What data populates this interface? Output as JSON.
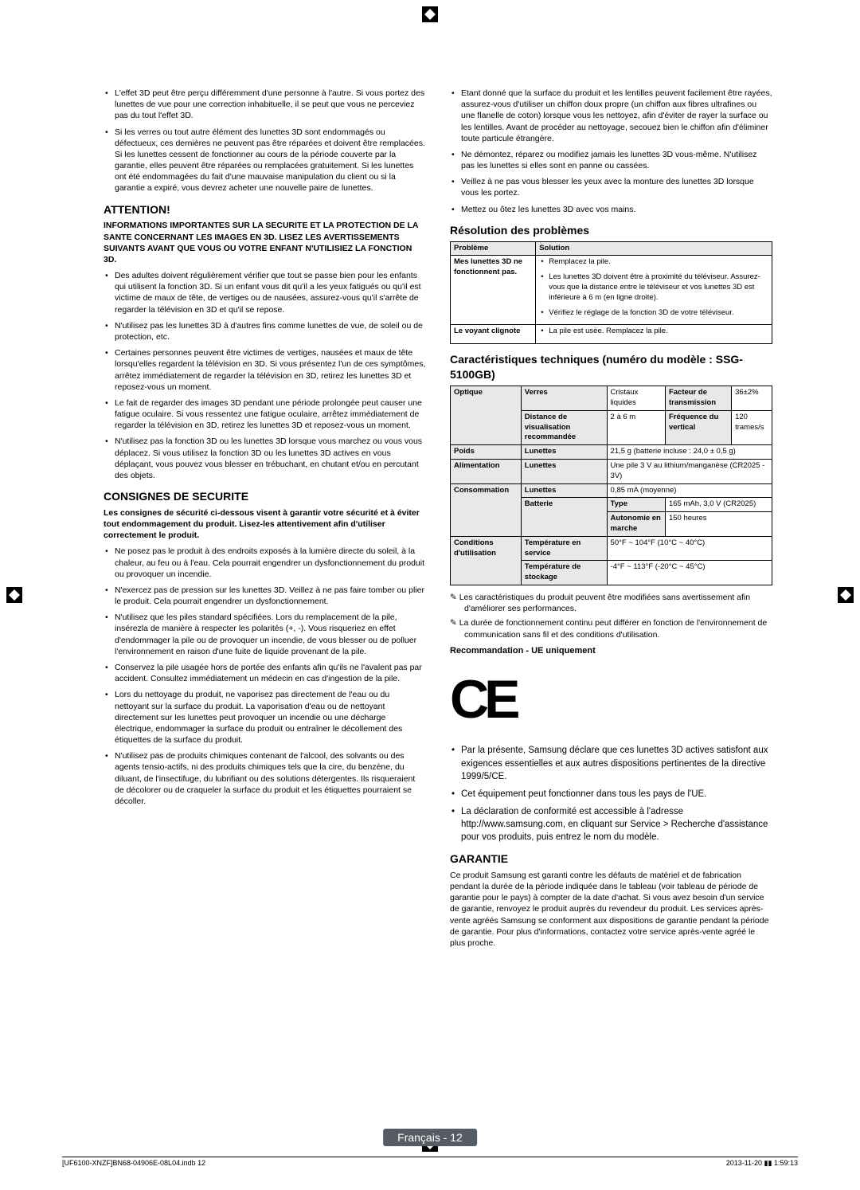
{
  "leftCol": {
    "topBullets": [
      "L'effet 3D peut être perçu différemment d'une personne à l'autre. Si vous portez des lunettes de vue pour une correction inhabituelle, il se peut que vous ne perceviez pas du tout l'effet 3D.",
      "Si les verres ou tout autre élément des lunettes 3D sont endommagés ou défectueux, ces dernières ne peuvent pas être réparées et doivent être remplacées. Si les lunettes cessent de fonctionner au cours de la période couverte par la garantie, elles peuvent être réparées ou remplacées gratuitement. Si les lunettes ont été endommagées du fait d'une mauvaise manipulation du client ou si la garantie a expiré, vous devrez acheter une nouvelle paire de lunettes."
    ],
    "attentionHeading": "ATTENTION!",
    "attentionBold": "INFORMATIONS IMPORTANTES SUR LA SECURITE ET LA PROTECTION DE LA SANTE CONCERNANT LES IMAGES EN 3D. LISEZ LES AVERTISSEMENTS SUIVANTS AVANT QUE VOUS OU VOTRE ENFANT N'UTILISIEZ LA FONCTION 3D.",
    "attentionBullets": [
      "Des adultes doivent régulièrement vérifier que tout se passe bien pour les enfants qui utilisent la fonction 3D. Si un enfant vous dit qu'il a les yeux fatigués ou qu'il est victime de maux de tête, de vertiges ou de nausées, assurez-vous qu'il s'arrête de regarder la télévision en 3D et qu'il se repose.",
      "N'utilisez pas les lunettes 3D à d'autres fins comme lunettes de vue, de soleil ou de protection, etc.",
      "Certaines personnes peuvent être victimes de vertiges, nausées et maux de tête lorsqu'elles regardent la télévision en 3D. Si vous présentez l'un de ces symptômes, arrêtez immédiatement de regarder la télévision en 3D, retirez les lunettes 3D et reposez-vous un moment.",
      "Le fait de regarder des images 3D pendant une période prolongée peut causer une fatigue oculaire. Si vous ressentez une fatigue oculaire, arrêtez immédiatement de regarder la télévision en 3D, retirez les lunettes 3D et reposez-vous un moment.",
      "N'utilisez pas la fonction 3D ou les lunettes 3D lorsque vous marchez ou vous vous déplacez. Si vous utilisez la fonction 3D ou les lunettes 3D actives en vous déplaçant, vous pouvez vous blesser en trébuchant, en chutant et/ou en percutant des objets."
    ],
    "consignesHeading": "CONSIGNES DE SECURITE",
    "consignesBold": "Les consignes de sécurité ci-dessous visent à garantir votre sécurité et à éviter tout endommagement du produit. Lisez-les attentivement afin d'utiliser correctement le produit.",
    "consignesBullets": [
      "Ne posez pas le produit à des endroits exposés à la lumière directe du soleil, à la chaleur, au feu ou à l'eau. Cela pourrait engendrer un dysfonctionnement du produit ou provoquer un incendie.",
      "N'exercez pas de pression sur les lunettes 3D. Veillez à ne pas faire tomber ou plier le produit. Cela pourrait engendrer un dysfonctionnement.",
      "N'utilisez que les piles standard spécifiées. Lors du remplacement de la pile, insérezla de manière à respecter les polarités (+, -). Vous risqueriez en effet d'endommager la pile ou de provoquer un incendie, de vous blesser ou de polluer l'environnement en raison d'une fuite de liquide provenant de la pile.",
      "Conservez la pile usagée hors de portée des enfants afin qu'ils ne l'avalent pas par accident. Consultez immédiatement un médecin en cas d'ingestion de la pile.",
      "Lors du nettoyage du produit, ne vaporisez pas directement de l'eau ou du nettoyant sur la surface du produit. La vaporisation d'eau ou de nettoyant directement sur les lunettes peut provoquer un incendie ou une décharge électrique, endommager la surface du produit ou entraîner le décollement des étiquettes de la surface du produit.",
      "N'utilisez pas de produits chimiques contenant de l'alcool, des solvants ou des agents tensio-actifs, ni des produits chimiques tels que la cire, du benzène, du diluant, de l'insectifuge, du lubrifiant ou des solutions détergentes. Ils risqueraient de décolorer ou de craqueler la surface du produit et les étiquettes pourraient se décoller."
    ]
  },
  "rightCol": {
    "topBullets": [
      "Etant donné que la surface du produit et les lentilles peuvent facilement être rayées, assurez-vous d'utiliser un chiffon doux propre (un chiffon aux fibres ultrafines ou une flanelle de coton) lorsque vous les nettoyez, afin d'éviter de rayer la surface ou les lentilles. Avant de procéder au nettoyage, secouez bien le chiffon afin d'éliminer toute particule étrangère.",
      "Ne démontez, réparez ou modifiez jamais les lunettes 3D vous-même. N'utilisez pas les lunettes si elles sont en panne ou cassées.",
      "Veillez à ne pas vous blesser les yeux avec la monture des lunettes 3D lorsque vous les portez.",
      "Mettez ou ôtez les lunettes 3D avec vos mains."
    ],
    "resolutionHeading": "Résolution des problèmes",
    "troubleTable": {
      "headers": [
        "Problème",
        "Solution"
      ],
      "row1": {
        "problem": "Mes lunettes 3D ne fonctionnent pas.",
        "solutions": [
          "Remplacez la pile.",
          "Les lunettes 3D doivent être à proximité du téléviseur. Assurez- vous que la distance entre le téléviseur et vos lunettes 3D est inférieure à 6 m (en ligne droite).",
          "Vérifiez le réglage de la fonction 3D de votre téléviseur."
        ]
      },
      "row2": {
        "problem": "Le voyant clignote",
        "solution": "La pile est usée. Remplacez la pile."
      }
    },
    "caracHeading": "Caractéristiques techniques (numéro du modèle : SSG-5100GB)",
    "specTable": {
      "optique": "Optique",
      "verres": "Verres",
      "cristaux": "Cristaux liquides",
      "facteur": "Facteur de transmission",
      "facteurVal": "36±2%",
      "distance": "Distance de visualisation recommandée",
      "distanceVal": "2 à 6 m",
      "freq": "Fréquence du vertical",
      "freqVal": "120 trames/s",
      "poids": "Poids",
      "lunettes": "Lunettes",
      "poidsVal": "21,5 g (batterie incluse : 24,0 ± 0,5 g)",
      "alim": "Alimentation",
      "alimVal": "Une pile 3 V au lithium/manganèse (CR2025 - 3V)",
      "conso": "Consommation",
      "consoLun": "0,85 mA (moyenne)",
      "batterie": "Batterie",
      "type": "Type",
      "typeVal": "165 mAh, 3,0 V (CR2025)",
      "auto": "Autonomie en marche",
      "autoVal": "150 heures",
      "cond": "Conditions d'utilisation",
      "tempServ": "Température en service",
      "tempServVal": "50°F ~ 104°F (10°C ~ 40°C)",
      "tempStock": "Température de stockage",
      "tempStockVal": "-4°F ~ 113°F (-20°C ~ 45°C)"
    },
    "note1": "Les caractéristiques du produit peuvent être modifiées sans avertissement afin d'améliorer ses performances.",
    "note2": "La durée de fonctionnement continu peut différer en fonction de l'environnement de communication sans fil et des conditions d'utilisation.",
    "recoHeading": "Recommandation - UE uniquement",
    "ceMark": "CE",
    "euBullets": [
      "Par la présente, Samsung déclare que ces lunettes 3D actives satisfont aux exigences essentielles et aux autres dispositions pertinentes de la directive 1999/5/CE.",
      "Cet équipement peut fonctionner dans tous les pays de l'UE.",
      "La déclaration de conformité est accessible à l'adresse http://www.samsung.com, en cliquant sur Service > Recherche d'assistance pour vos produits, puis entrez le nom du modèle."
    ],
    "garantieHeading": "GARANTIE",
    "garantieText": "Ce produit Samsung est garanti contre les défauts de matériel et de fabrication pendant la durée de la période indiquée dans le tableau (voir tableau de période de garantie pour le pays) à compter de la date d'achat. Si vous avez besoin d'un service de garantie, renvoyez le produit auprès du revendeur du produit. Les services après-vente agréés Samsung se conforment aux dispositions de garantie pendant la période de garantie. Pour plus d'informations, contactez votre service après-vente agréé le plus proche."
  },
  "footer": {
    "lang": "Français - 12",
    "leftFile": "[UF6100-XNZF]BN68-04906E-08L04.indb   12",
    "rightTime": "2013-11-20   ▮▮ 1:59:13"
  }
}
